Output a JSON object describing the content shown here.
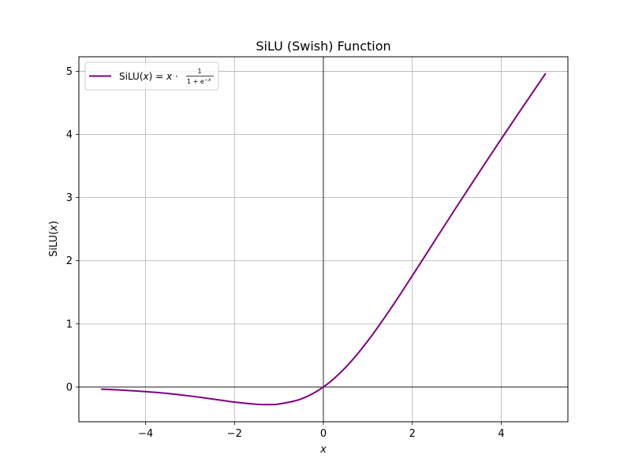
{
  "chart_data": {
    "type": "line",
    "title": "SiLU (Swish) Function",
    "xlabel": "x",
    "ylabel_parts": {
      "prefix": "SiLU(",
      "var": "x",
      "suffix": ")"
    },
    "legend": {
      "prefix": "SiLU(",
      "var": "x",
      "mid": ") = ",
      "var2": "x",
      "dot": " · ",
      "numerator": "1",
      "denominator": "1 + e",
      "exponent": "−x",
      "placement": "upper-left"
    },
    "xlim": [
      -5.5,
      5.5
    ],
    "ylim": [
      -0.55,
      5.23
    ],
    "xticks": [
      -4,
      -2,
      0,
      2,
      4
    ],
    "xtick_labels": [
      "−4",
      "−2",
      "0",
      "2",
      "4"
    ],
    "yticks": [
      0,
      1,
      2,
      3,
      4,
      5
    ],
    "ytick_labels": [
      "0",
      "1",
      "2",
      "3",
      "4",
      "5"
    ],
    "grid": true,
    "reference_lines": {
      "horizontal_at": 0,
      "vertical_at": 0,
      "color": "#000000"
    },
    "series": [
      {
        "name": "SiLU(x) = x · 1/(1 + e^−x)",
        "color": "#800080",
        "x": [
          -5.0,
          -4.5,
          -4.0,
          -3.5,
          -3.0,
          -2.5,
          -2.0,
          -1.5,
          -1.25,
          -1.0,
          -0.5,
          0.0,
          0.5,
          1.0,
          1.5,
          2.0,
          2.5,
          3.0,
          3.5,
          4.0,
          4.5,
          5.0
        ],
        "y": [
          -0.033,
          -0.05,
          -0.072,
          -0.102,
          -0.142,
          -0.189,
          -0.238,
          -0.273,
          -0.278,
          -0.269,
          -0.189,
          0.0,
          0.311,
          0.731,
          1.227,
          1.762,
          2.311,
          2.858,
          3.396,
          3.928,
          4.45,
          4.967
        ]
      }
    ]
  }
}
